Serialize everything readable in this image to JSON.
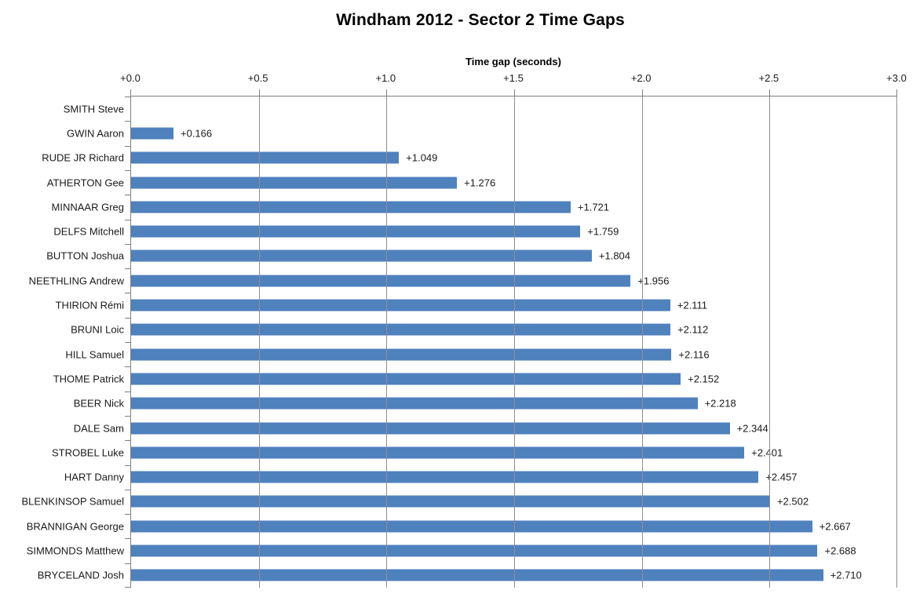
{
  "title": "Windham 2012 - Sector 2 Time Gaps",
  "colors": {
    "bar": "#4F81BD",
    "gridline": "#8F8F8F",
    "axis": "#808080",
    "text": "#1A1A1A",
    "title_text": "#000000"
  },
  "chart_data": {
    "type": "bar",
    "orientation": "horizontal",
    "title": "Windham 2012 - Sector 2 Time Gaps",
    "xlabel": "Time gap (seconds)",
    "ylabel": "",
    "xlim": [
      0.0,
      3.0
    ],
    "grid": true,
    "x_axis_position": "top",
    "x_tick_labels": [
      "+0.0",
      "+0.5",
      "+1.0",
      "+1.5",
      "+2.0",
      "+2.5",
      "+3.0"
    ],
    "x_tick_values": [
      0.0,
      0.5,
      1.0,
      1.5,
      2.0,
      2.5,
      3.0
    ],
    "bar_color": "#4F81BD",
    "categories": [
      "SMITH Steve",
      "GWIN Aaron",
      "RUDE JR Richard",
      "ATHERTON Gee",
      "MINNAAR Greg",
      "DELFS Mitchell",
      "BUTTON Joshua",
      "NEETHLING Andrew",
      "THIRION Rémi",
      "BRUNI Loic",
      "HILL Samuel",
      "THOME Patrick",
      "BEER Nick",
      "DALE Sam",
      "STROBEL Luke",
      "HART Danny",
      "BLENKINSOP Samuel",
      "BRANNIGAN George",
      "SIMMONDS Matthew",
      "BRYCELAND Josh"
    ],
    "values": [
      0.0,
      0.166,
      1.049,
      1.276,
      1.721,
      1.759,
      1.804,
      1.956,
      2.111,
      2.112,
      2.116,
      2.152,
      2.218,
      2.344,
      2.401,
      2.457,
      2.502,
      2.667,
      2.688,
      2.71
    ],
    "data_labels": [
      "",
      "+0.166",
      "+1.049",
      "+1.276",
      "+1.721",
      "+1.759",
      "+1.804",
      "+1.956",
      "+2.111",
      "+2.112",
      "+2.116",
      "+2.152",
      "+2.218",
      "+2.344",
      "+2.401",
      "+2.457",
      "+2.502",
      "+2.667",
      "+2.688",
      "+2.710"
    ]
  }
}
